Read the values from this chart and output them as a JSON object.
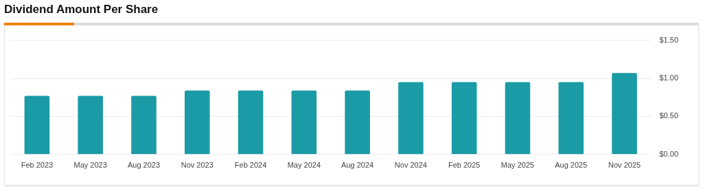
{
  "chart_data": {
    "type": "bar",
    "title": "Dividend Amount Per Share",
    "categories": [
      "Feb 2023",
      "May 2023",
      "Aug 2023",
      "Nov 2023",
      "Feb 2024",
      "May 2024",
      "Aug 2024",
      "Nov 2024",
      "Feb 2025",
      "May 2025",
      "Aug 2025",
      "Nov 2025"
    ],
    "values": [
      0.77,
      0.77,
      0.77,
      0.84,
      0.84,
      0.84,
      0.84,
      0.95,
      0.95,
      0.95,
      0.95,
      1.07
    ],
    "color": "#1a9ba5",
    "ylim": [
      0,
      1.5
    ],
    "yticks": [
      {
        "value": 0,
        "label": "$0.00"
      },
      {
        "value": 0.5,
        "label": "$0.50"
      },
      {
        "value": 1,
        "label": "$1.00"
      },
      {
        "value": 1.5,
        "label": "$1.50"
      }
    ],
    "grid": "y"
  }
}
